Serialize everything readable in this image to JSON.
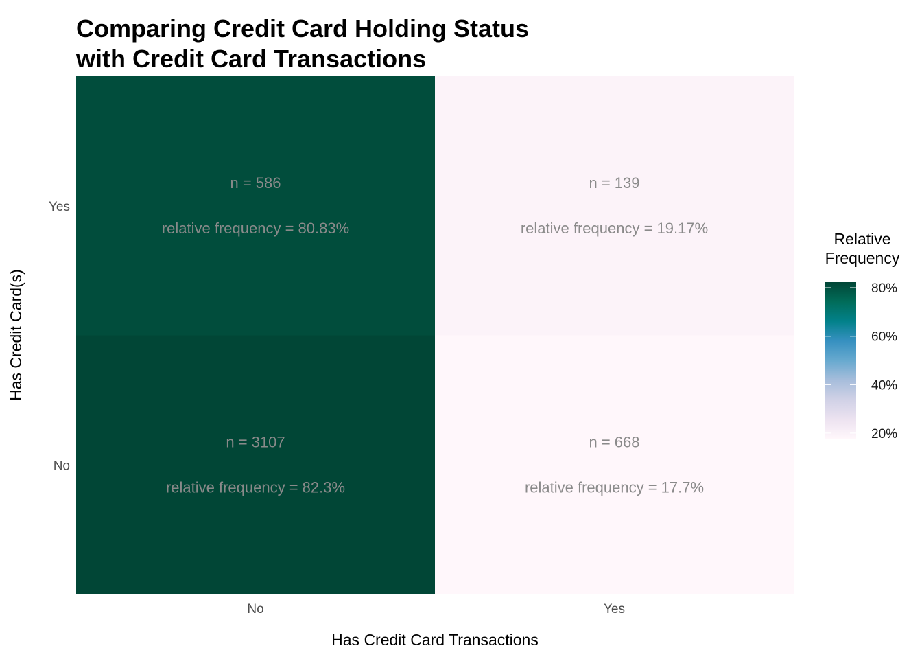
{
  "chart_data": {
    "type": "heatmap",
    "title_lines": [
      "Comparing Credit Card Holding Status",
      "with Credit Card Transactions"
    ],
    "xlabel": "Has Credit Card Transactions",
    "ylabel": "Has Credit Card(s)",
    "x_categories": [
      "No",
      "Yes"
    ],
    "y_categories": [
      "No",
      "Yes"
    ],
    "cells": [
      {
        "x": "No",
        "y": "Yes",
        "n": 586,
        "relative_frequency": 80.83,
        "count_label": "n = 586",
        "freq_label": "relative frequency = 80.83%"
      },
      {
        "x": "Yes",
        "y": "Yes",
        "n": 139,
        "relative_frequency": 19.17,
        "count_label": "n = 139",
        "freq_label": "relative frequency = 19.17%"
      },
      {
        "x": "No",
        "y": "No",
        "n": 3107,
        "relative_frequency": 82.3,
        "count_label": "n = 3107",
        "freq_label": "relative frequency = 82.3%"
      },
      {
        "x": "Yes",
        "y": "No",
        "n": 668,
        "relative_frequency": 17.7,
        "count_label": "n = 668",
        "freq_label": "relative frequency = 17.7%"
      }
    ],
    "legend": {
      "title_lines": [
        "Relative",
        "Frequency"
      ],
      "ticks": [
        {
          "value": 80,
          "label": "80%"
        },
        {
          "value": 60,
          "label": "60%"
        },
        {
          "value": 40,
          "label": "40%"
        },
        {
          "value": 20,
          "label": "20%"
        }
      ],
      "range": [
        17.7,
        82.3
      ],
      "placement": "right"
    },
    "color_scale": [
      "#fff7fb",
      "#ece2f0",
      "#d0d1e6",
      "#a6bddb",
      "#67a9cf",
      "#3690c0",
      "#02818a",
      "#016c59",
      "#014636"
    ]
  }
}
